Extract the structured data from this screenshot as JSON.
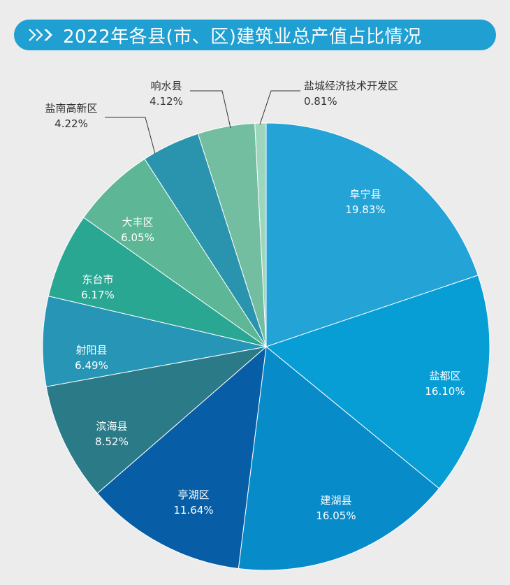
{
  "header": {
    "title": "2022年各县(市、区)建筑业总产值占比情况",
    "icon": "double-chevron-right-icon"
  },
  "chart_data": {
    "type": "pie",
    "title": "2022年各县(市、区)建筑业总产值占比情况",
    "unit": "%",
    "start_angle": "12 o'clock",
    "direction": "clockwise",
    "slices": [
      {
        "name": "阜宁县",
        "value": 19.83,
        "label": "19.83%",
        "color": "#23a3d6"
      },
      {
        "name": "盐都区",
        "value": 16.1,
        "label": "16.10%",
        "color": "#079dd5"
      },
      {
        "name": "建湖县",
        "value": 16.05,
        "label": "16.05%",
        "color": "#088bc9"
      },
      {
        "name": "亭湖区",
        "value": 11.64,
        "label": "11.64%",
        "color": "#075ea6"
      },
      {
        "name": "滨海县",
        "value": 8.52,
        "label": "8.52%",
        "color": "#2b7a87"
      },
      {
        "name": "射阳县",
        "value": 6.49,
        "label": "6.49%",
        "color": "#2795b5"
      },
      {
        "name": "东台市",
        "value": 6.17,
        "label": "6.17%",
        "color": "#2aa793"
      },
      {
        "name": "大丰区",
        "value": 6.05,
        "label": "6.05%",
        "color": "#5db696"
      },
      {
        "name": "盐南高新区",
        "value": 4.22,
        "label": "4.22%",
        "color": "#2a93ae"
      },
      {
        "name": "响水县",
        "value": 4.12,
        "label": "4.12%",
        "color": "#73bda0"
      },
      {
        "name": "盐城经济技术开发区",
        "value": 0.81,
        "label": "0.81%",
        "color": "#9dd6bd"
      }
    ],
    "label_color": "#ffffff",
    "callout_color": "#333333"
  }
}
